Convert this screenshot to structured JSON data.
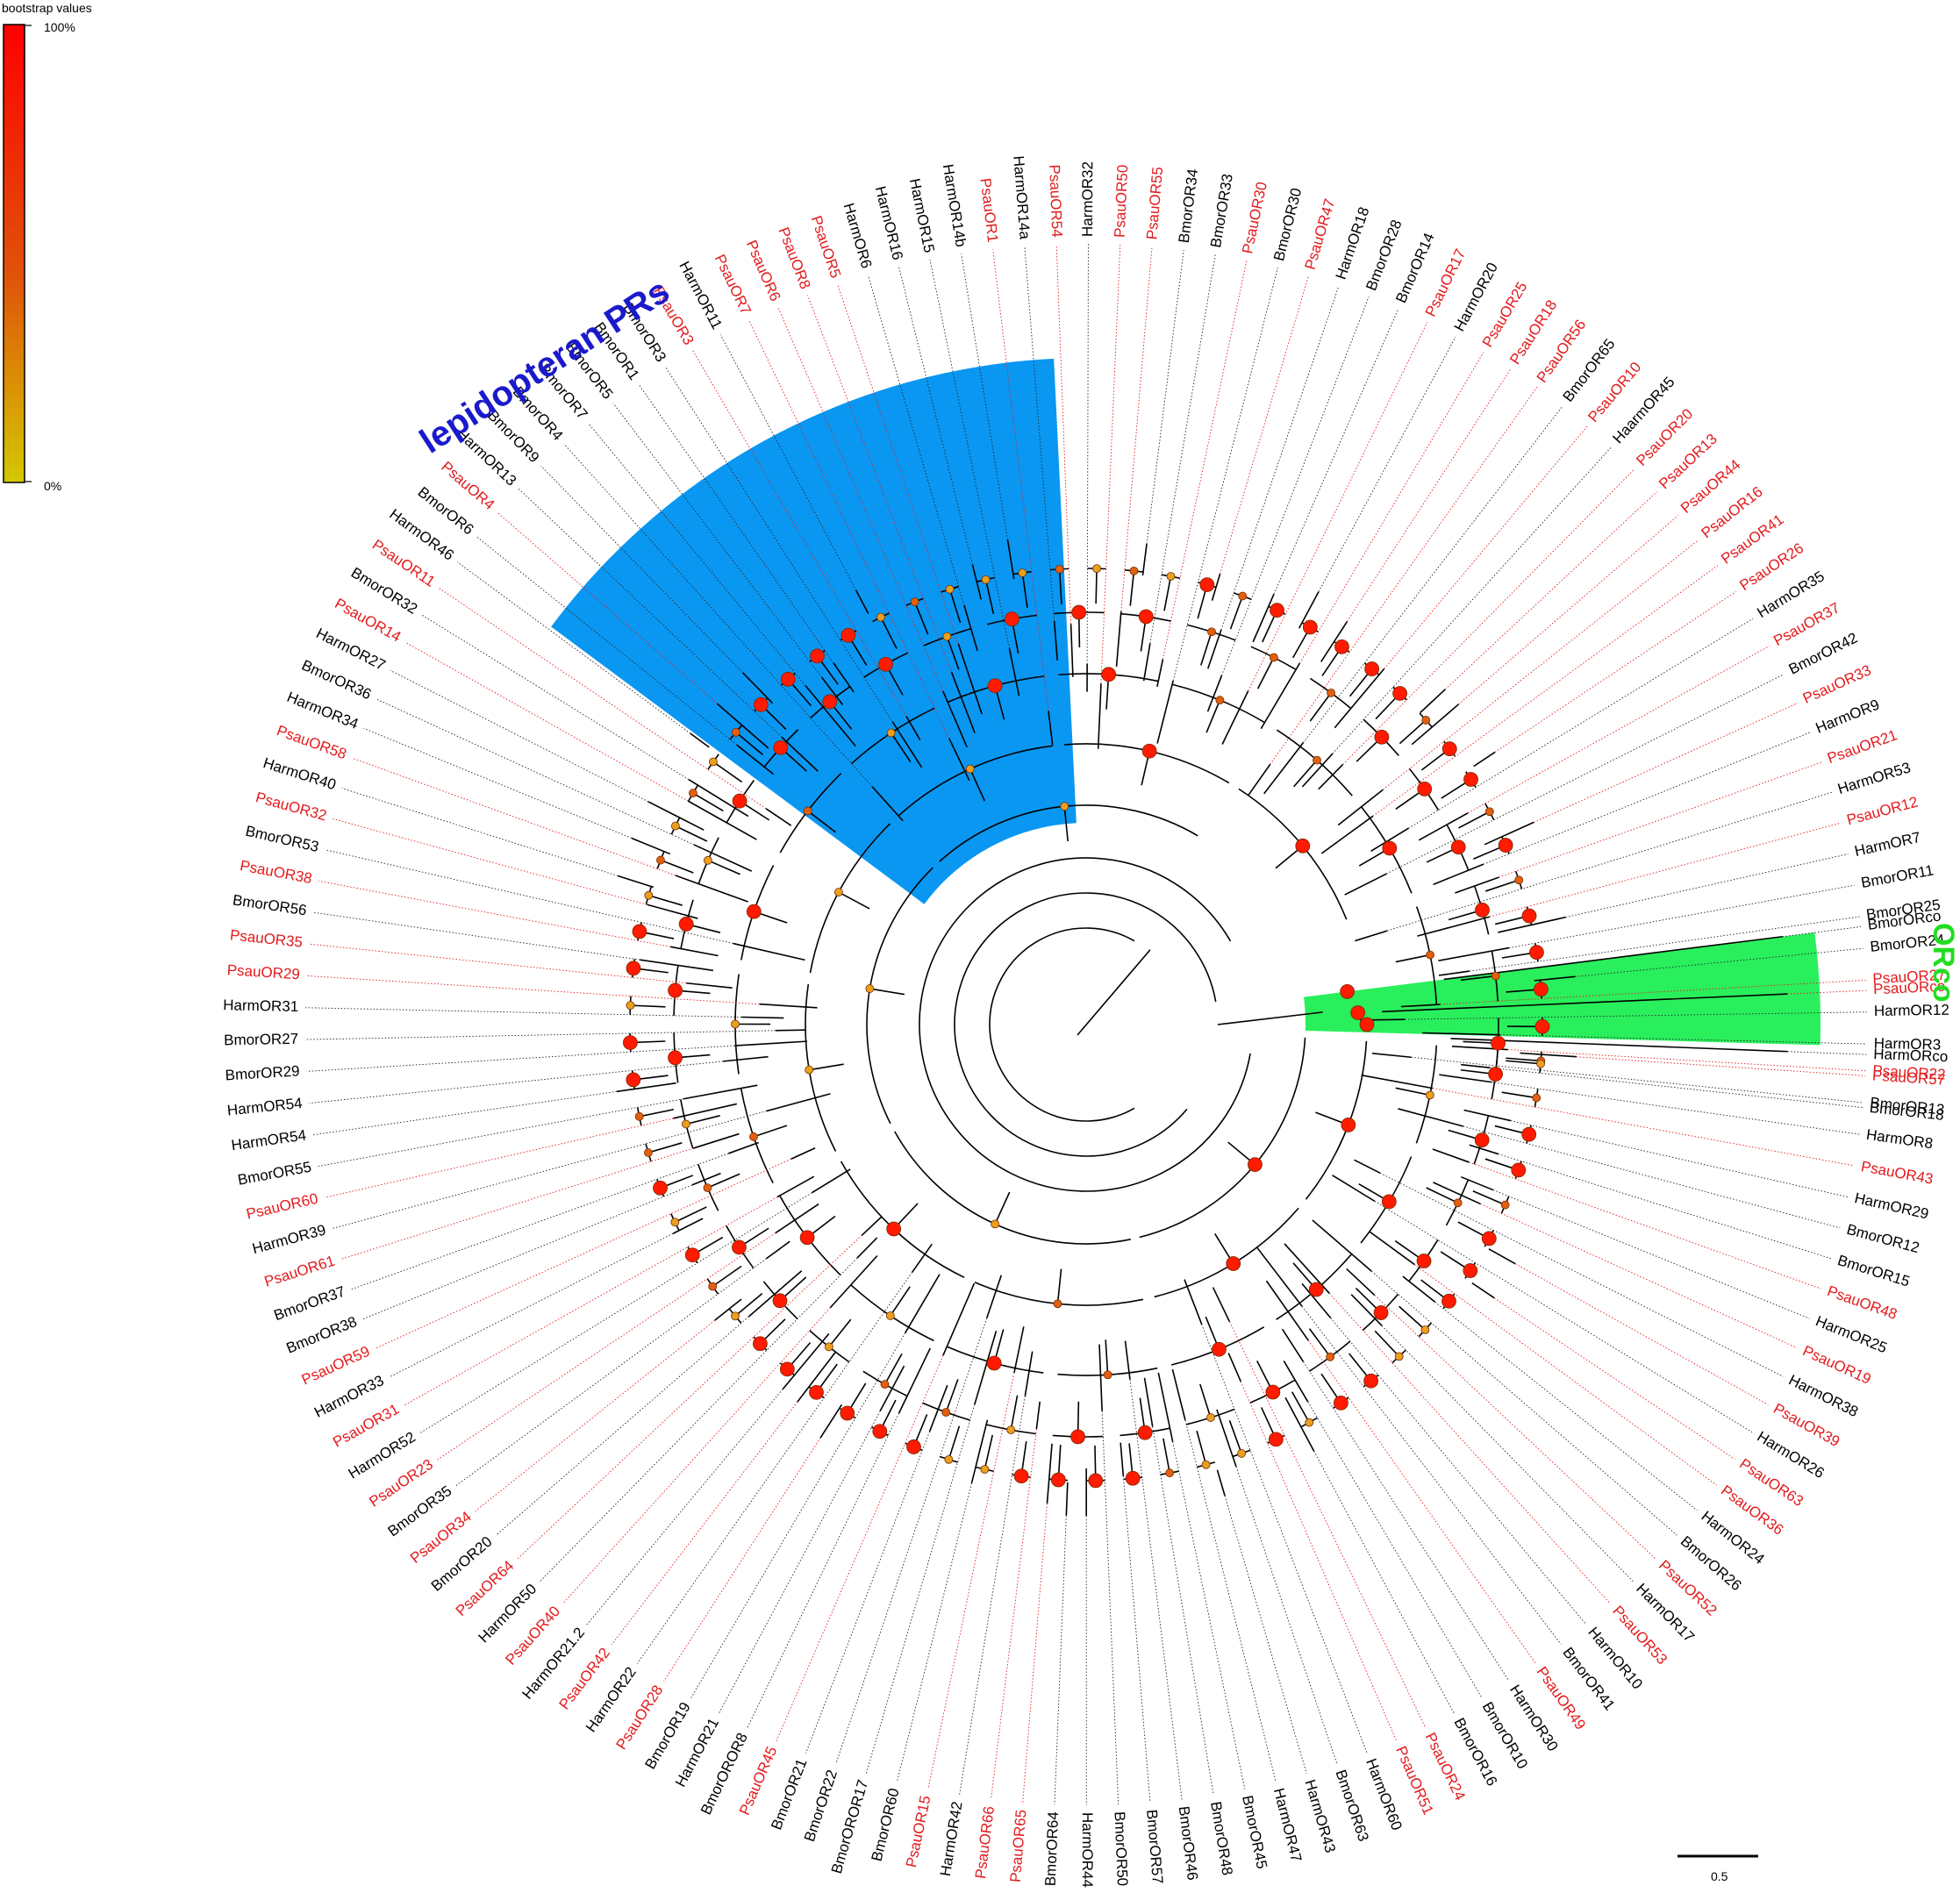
{
  "legend": {
    "title": "bootstrap values",
    "max_label": "100%",
    "min_label": "0%",
    "color_max": "#ff0000",
    "color_min": "#d4c800"
  },
  "scale_bar": {
    "label": "0.5",
    "value": 0.5
  },
  "colors": {
    "psau": "#e31a1c",
    "other": "#000000",
    "pr_clade_fill": "#0a97f2",
    "orco_clade_fill": "#2aef5c",
    "pr_title": "#1a1acc",
    "orco_title": "#22dd22"
  },
  "clades": {
    "pr": {
      "title": "lepidopteran PRs"
    },
    "orco": {
      "title": "ORco"
    }
  },
  "leaves": [
    "PsauOR22",
    "BmorOR13",
    "HarmOR8",
    "PsauOR43",
    "HarmOR29",
    "BmorOR12",
    "BmorOR15",
    "PsauOR48",
    "HarmOR25",
    "PsauOR19",
    "HarmOR38",
    "PsauOR39",
    "HarmOR26",
    "PsauOR63",
    "PsauOR36",
    "HarmOR24",
    "BmorOR26",
    "PsauOR52",
    "HarmOR17",
    "PsauOR53",
    "HarmOR10",
    "BmorOR41",
    "PsauOR49",
    "HarmOR30",
    "BmorOR10",
    "BmorOR16",
    "PsauOR24",
    "PsauOR51",
    "HarmOR60",
    "BmorOR63",
    "HarmOR43",
    "HarmOR47",
    "BmorOR45",
    "BmorOR48",
    "BmorOR46",
    "BmorOR57",
    "BmorOR50",
    "HarmOR44",
    "BmorOR64",
    "PsauOR65",
    "PsauOR66",
    "HarmOR42",
    "PsauOR15",
    "BmorOR60",
    "BmorOROR17",
    "BmorOR22",
    "BmorOR21",
    "PsauOR45",
    "BmorOROR8",
    "HarmOR21",
    "BmorOR19",
    "PsauOR28",
    "HarmOR22",
    "PsauOR42",
    "HarmOR21.2",
    "PsauOR40",
    "HarmOR50",
    "PsauOR64",
    "BmorOR20",
    "PsauOR34",
    "BmorOR35",
    "PsauOR23",
    "HarmOR52",
    "PsauOR31",
    "HarmOR33",
    "PsauOR59",
    "BmorOR38",
    "BmorOR37",
    "PsauOR61",
    "HarmOR39",
    "PsauOR60",
    "BmorOR55",
    "HarmOR54",
    "HarmOR54",
    "BmorOR29",
    "BmorOR27",
    "HarmOR31",
    "PsauOR29",
    "PsauOR35",
    "BmorOR56",
    "PsauOR38",
    "BmorOR53",
    "PsauOR32",
    "HarmOR40",
    "PsauOR58",
    "HarmOR34",
    "BmorOR36",
    "HarmOR27",
    "PsauOR14",
    "BmorOR32",
    "PsauOR11",
    "HarmOR46",
    "BmorOR6",
    "PsauOR4",
    "HarmOR13",
    "BmorOR9",
    "BmorOR4",
    "BmorOR7",
    "BmorOR5",
    "BmorOR1",
    "BmorOR3",
    "PsauOR3",
    "HarmOR11",
    "PsauOR7",
    "PsauOR6",
    "PsauOR8",
    "PsauOR5",
    "HarmOR6",
    "HarmOR16",
    "HarmOR15",
    "HarmOR14b",
    "PsauOR1",
    "HarmOR14a",
    "PsauOR54",
    "HarmOR32",
    "PsauOR50",
    "PsauOR55",
    "BmorOR34",
    "BmorOR33",
    "PsauOR30",
    "BmorOR30",
    "PsauOR47",
    "HarmOR18",
    "BmorOR28",
    "BmorOR14",
    "PsauOR17",
    "HarmOR20",
    "PsauOR25",
    "PsauOR18",
    "PsauOR56",
    "BmorOR65",
    "PsauOR10",
    "HaarmOR45",
    "PsauOR20",
    "PsauOR13",
    "PsauOR44",
    "PsauOR16",
    "PsauOR41",
    "PsauOR26",
    "HarmOR35",
    "PsauOR37",
    "BmorOR42",
    "PsauOR33",
    "HarmOR9",
    "PsauOR21",
    "HarmOR53",
    "PsauOR12",
    "HarmOR7",
    "BmorOR11",
    "BmorOR25",
    "BmorOR24",
    "PsauOR27",
    "HarmOR12",
    "HarmOR3",
    "PsauOR57",
    "BmorOR18",
    "BmorORco",
    "PsauORco",
    "HarmORco"
  ]
}
